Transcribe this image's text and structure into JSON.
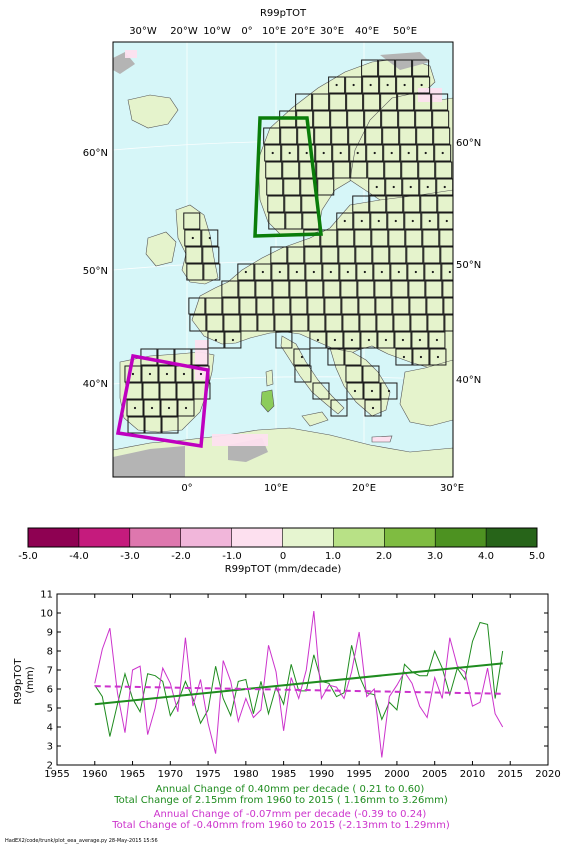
{
  "map": {
    "title": "R99pTOT",
    "top_ticks": [
      "30°W",
      "20°W",
      "10°W",
      "0°",
      "10°E",
      "20°E",
      "30°E",
      "40°E",
      "50°E"
    ],
    "left_ticks": [
      "60°N",
      "50°N",
      "40°N"
    ],
    "right_ticks": [
      "60°N",
      "50°N",
      "40°N"
    ],
    "bottom_ticks": [
      "0°",
      "10°E",
      "20°E",
      "30°E"
    ],
    "colors": {
      "sea": "#d6f6f8",
      "land": "#e5f3cc",
      "no_data": "#b4b4b4",
      "box_north": "#0a7d0a",
      "box_iberia": "#bf00bf"
    }
  },
  "colorbar": {
    "ticks": [
      "-5.0",
      "-4.0",
      "-3.0",
      "-2.0",
      "-1.0",
      "0",
      "1.0",
      "2.0",
      "3.0",
      "4.0",
      "5.0"
    ],
    "label": "R99pTOT (mm/decade)",
    "colors": [
      "#8e0152",
      "#c51b7d",
      "#de77ae",
      "#f1b6da",
      "#fde0ef",
      "#e6f5d0",
      "#b8e186",
      "#7fbc41",
      "#4d9221",
      "#276419"
    ]
  },
  "chart_data": {
    "type": "line",
    "ylabel": "R99pTOT\n(mm)",
    "xlim": [
      1955,
      2020
    ],
    "ylim": [
      2,
      11
    ],
    "x_ticks": [
      1955,
      1960,
      1965,
      1970,
      1975,
      1980,
      1985,
      1990,
      1995,
      2000,
      2005,
      2010,
      2015,
      2020
    ],
    "y_ticks": [
      2,
      3,
      4,
      5,
      6,
      7,
      8,
      9,
      10,
      11
    ],
    "x": [
      1960,
      1961,
      1962,
      1963,
      1964,
      1965,
      1966,
      1967,
      1968,
      1969,
      1970,
      1971,
      1972,
      1973,
      1974,
      1975,
      1976,
      1977,
      1978,
      1979,
      1980,
      1981,
      1982,
      1983,
      1984,
      1985,
      1986,
      1987,
      1988,
      1989,
      1990,
      1991,
      1992,
      1993,
      1994,
      1995,
      1996,
      1997,
      1998,
      1999,
      2000,
      2001,
      2002,
      2003,
      2004,
      2005,
      2006,
      2007,
      2008,
      2009,
      2010,
      2011,
      2012,
      2013,
      2014
    ],
    "series": [
      {
        "color": "#1f8c1f",
        "values": [
          6.2,
          5.6,
          3.5,
          5.2,
          6.8,
          5.5,
          4.8,
          6.8,
          6.7,
          6.4,
          4.6,
          5.3,
          6.4,
          5.5,
          4.2,
          4.9,
          7.2,
          5.5,
          4.6,
          6.4,
          6.5,
          4.7,
          6.4,
          4.7,
          6.1,
          5.2,
          7.3,
          5.9,
          5.9,
          7.8,
          6.4,
          6.3,
          5.6,
          5.8,
          8.3,
          6.7,
          5.8,
          5.7,
          4.4,
          5.3,
          4.9,
          7.3,
          6.9,
          6.7,
          6.7,
          8.0,
          7.1,
          5.7,
          7.1,
          6.5,
          8.5,
          9.5,
          9.4,
          5.5,
          8.0
        ]
      },
      {
        "color": "#cc33cc",
        "values": [
          6.3,
          8.1,
          9.2,
          5.8,
          3.7,
          7.0,
          7.2,
          3.6,
          5.0,
          7.1,
          6.3,
          4.8,
          8.7,
          5.1,
          6.5,
          4.2,
          2.6,
          7.5,
          6.4,
          4.3,
          5.5,
          4.5,
          4.9,
          8.3,
          6.9,
          3.8,
          6.6,
          5.5,
          7.0,
          10.1,
          5.5,
          6.2,
          6.1,
          5.5,
          6.9,
          9.0,
          5.6,
          6.0,
          2.4,
          5.6,
          6.2,
          6.9,
          6.3,
          5.1,
          4.5,
          6.6,
          5.5,
          8.7,
          7.2,
          6.9,
          5.1,
          5.3,
          7.1,
          4.7,
          4.0
        ]
      }
    ],
    "trends": [
      {
        "color": "#1f8c1f",
        "start": [
          1960,
          5.2
        ],
        "end": [
          2014,
          7.35
        ],
        "style": "solid"
      },
      {
        "color": "#cc33cc",
        "start": [
          1960,
          6.15
        ],
        "end": [
          2014,
          5.75
        ],
        "style": "dashed"
      }
    ],
    "annotations": [
      {
        "text": "Annual Change of  0.40mm per decade ( 0.21 to  0.60)",
        "color": "#1f8c1f"
      },
      {
        "text": "Total Change of  2.15mm from 1960 to 2015 ( 1.16mm to  3.26mm)",
        "color": "#1f8c1f"
      },
      {
        "text": "Annual Change of -0.07mm per decade (-0.39 to  0.24)",
        "color": "#cc33cc"
      },
      {
        "text": "Total Change of -0.40mm from 1960 to 2015 (-2.13mm to  1.29mm)",
        "color": "#cc33cc"
      }
    ]
  },
  "footer": "HadEX2/code/trunk/plot_eea_average.py   28-May-2015 15:56"
}
